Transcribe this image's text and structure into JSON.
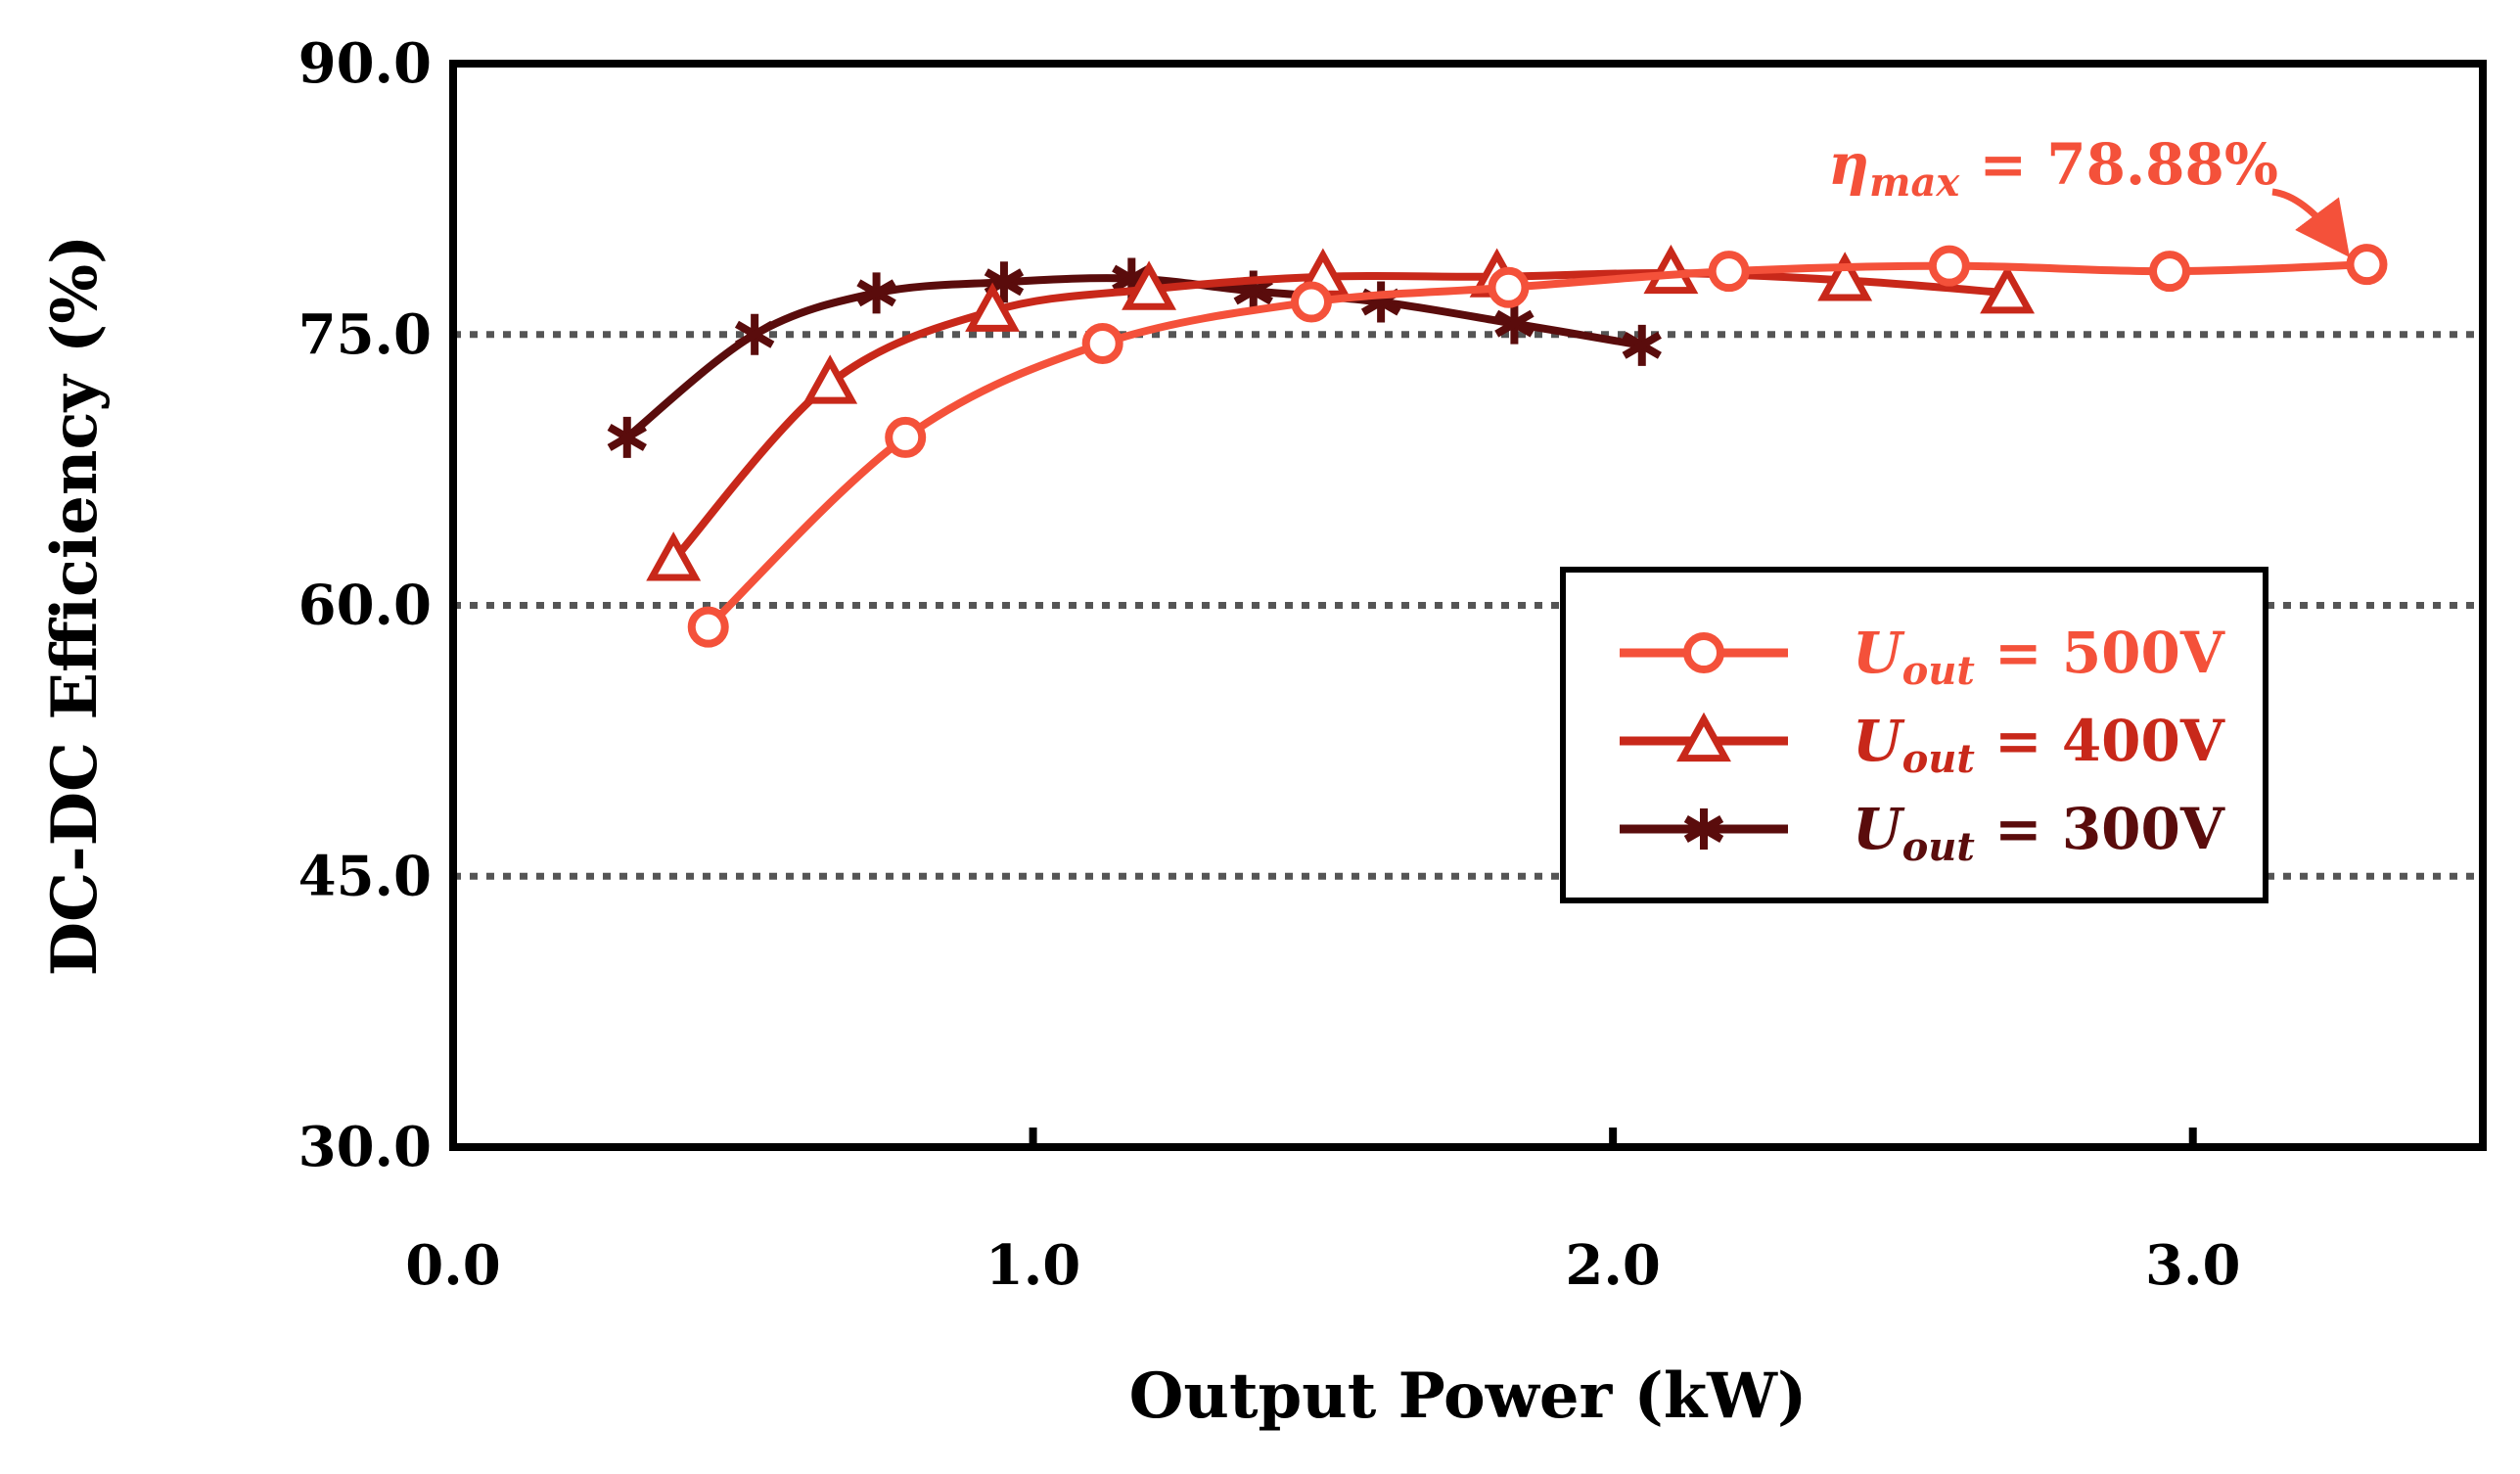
{
  "chart_data": {
    "type": "line",
    "title": "",
    "xlabel": "Output Power (kW)",
    "ylabel": "DC-DC Efficiency (%)",
    "xlim": [
      0.0,
      3.5
    ],
    "ylim": [
      30.0,
      90.0
    ],
    "xticks": [
      "0.0",
      "1.0",
      "2.0",
      "3.0"
    ],
    "xtick_values": [
      0,
      1,
      2,
      3
    ],
    "yticks": [
      "30.0",
      "45.0",
      "60.0",
      "75.0",
      "90.0"
    ],
    "ytick_values": [
      30,
      45,
      60,
      75,
      90
    ],
    "gridlines_y": [
      45,
      60,
      75
    ],
    "legend_position": "center-right",
    "series": [
      {
        "name": "Uout = 500V",
        "legend_main": "U",
        "legend_sub": "out",
        "legend_rest": " = 500V",
        "marker": "circle",
        "color": "#f4513a",
        "x": [
          0.44,
          0.78,
          1.12,
          1.48,
          1.82,
          2.2,
          2.58,
          2.96,
          3.3
        ],
        "y": [
          58.8,
          69.3,
          74.5,
          76.8,
          77.6,
          78.5,
          78.8,
          78.5,
          78.88
        ]
      },
      {
        "name": "Uout = 400V",
        "legend_main": "U",
        "legend_sub": "out",
        "legend_rest": " = 400V",
        "marker": "triangle",
        "color": "#c8281a",
        "x": [
          0.38,
          0.65,
          0.93,
          1.2,
          1.5,
          1.8,
          2.1,
          2.4,
          2.68
        ],
        "y": [
          62.5,
          72.3,
          76.3,
          77.5,
          78.2,
          78.2,
          78.4,
          78.0,
          77.3
        ]
      },
      {
        "name": "Uout = 300V",
        "legend_main": "U",
        "legend_sub": "out",
        "legend_rest": " = 300V",
        "marker": "asterisk",
        "color": "#5a0c0c",
        "x": [
          0.3,
          0.52,
          0.73,
          0.95,
          1.17,
          1.38,
          1.6,
          1.83,
          2.05
        ],
        "y": [
          69.3,
          75.0,
          77.3,
          77.9,
          78.1,
          77.4,
          76.8,
          75.6,
          74.4
        ]
      }
    ],
    "annotations": [
      {
        "text": "η",
        "sub": "max",
        "rest": " = 78.88%",
        "color": "#f4513a",
        "points_to": {
          "x": 3.3,
          "y": 78.88
        }
      }
    ]
  }
}
